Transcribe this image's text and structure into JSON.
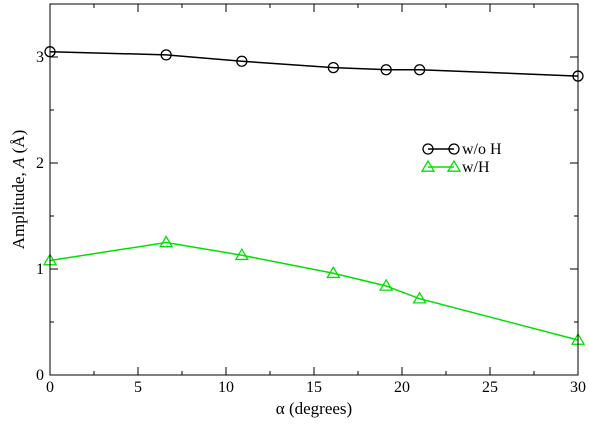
{
  "chart_data": {
    "type": "line",
    "xlabel": "α (degrees)",
    "ylabel_prefix": "Amplitude, ",
    "ylabel_italic": "A",
    "ylabel_suffix": " (Å)",
    "xlim": [
      0,
      30
    ],
    "ylim": [
      0,
      3.5
    ],
    "x_ticks": [
      0,
      5,
      10,
      15,
      20,
      25,
      30
    ],
    "y_ticks": [
      0,
      1,
      2,
      3
    ],
    "grid": false,
    "legend_position": "right-middle",
    "series": [
      {
        "name": "w/o H",
        "color": "#000000",
        "marker": "circle",
        "x": [
          0,
          6.6,
          10.9,
          16.1,
          19.1,
          21.0,
          30.0
        ],
        "y": [
          3.05,
          3.02,
          2.96,
          2.9,
          2.88,
          2.88,
          2.82
        ]
      },
      {
        "name": "w/H",
        "color": "#00e000",
        "marker": "triangle",
        "x": [
          0,
          6.6,
          10.9,
          16.1,
          19.1,
          21.0,
          30.0
        ],
        "y": [
          1.08,
          1.25,
          1.13,
          0.96,
          0.84,
          0.72,
          0.33
        ]
      }
    ]
  }
}
